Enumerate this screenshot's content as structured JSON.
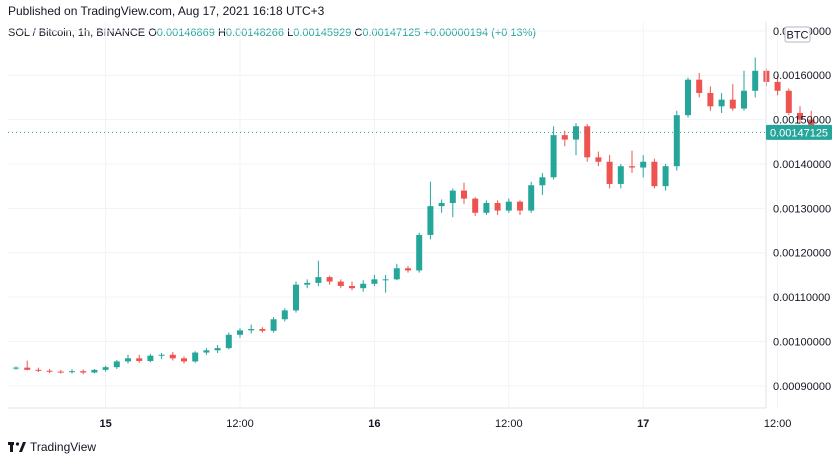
{
  "header": {
    "published": "Published on TradingView.com, Aug 17, 2021 16:18 UTC+3",
    "symbol": "SOL / Bitcoin, 1h, BINANCE",
    "o_label": "O",
    "o_value": "0.00146869",
    "h_label": "H",
    "h_value": "0.00148266",
    "l_label": "L",
    "l_value": "0.00145929",
    "c_label": "C",
    "c_value": "0.00147125",
    "change": "+0.00000194 (+0.13%)"
  },
  "footer": {
    "brand": "TradingView"
  },
  "colors": {
    "up": "#26a69a",
    "down": "#ef5350",
    "grid": "#f0f3fa",
    "text": "#131722"
  },
  "chart_data": {
    "type": "candlestick",
    "currency_badge": "BTC",
    "last_price_label": "0.00147125",
    "last_price": 0.00147125,
    "ylim": [
      0.00085,
      0.00172
    ],
    "y_ticks": [
      {
        "value": 0.0009,
        "label": "0.00090000"
      },
      {
        "value": 0.001,
        "label": "0.00100000"
      },
      {
        "value": 0.0011,
        "label": "0.00110000"
      },
      {
        "value": 0.0012,
        "label": "0.00120000"
      },
      {
        "value": 0.0013,
        "label": "0.00130000"
      },
      {
        "value": 0.0014,
        "label": "0.00140000"
      },
      {
        "value": 0.0015,
        "label": "0.00150000"
      },
      {
        "value": 0.0016,
        "label": "0.00160000"
      },
      {
        "value": 0.0017,
        "label": "0.00170000"
      }
    ],
    "x_ticks": [
      {
        "index": 8,
        "label": "15",
        "bold": true
      },
      {
        "index": 20,
        "label": "12:00",
        "bold": false
      },
      {
        "index": 32,
        "label": "16",
        "bold": true
      },
      {
        "index": 44,
        "label": "12:00",
        "bold": false
      },
      {
        "index": 56,
        "label": "17",
        "bold": true
      },
      {
        "index": 68,
        "label": "12:00",
        "bold": false
      }
    ],
    "candles": [
      {
        "o": 0.00094,
        "h": 0.000944,
        "l": 0.000936,
        "c": 0.000941
      },
      {
        "o": 0.000941,
        "h": 0.000957,
        "l": 0.000935,
        "c": 0.000936
      },
      {
        "o": 0.000936,
        "h": 0.000941,
        "l": 0.000931,
        "c": 0.000934
      },
      {
        "o": 0.000934,
        "h": 0.000938,
        "l": 0.000929,
        "c": 0.000932
      },
      {
        "o": 0.000932,
        "h": 0.000936,
        "l": 0.000928,
        "c": 0.000931
      },
      {
        "o": 0.000931,
        "h": 0.000937,
        "l": 0.000928,
        "c": 0.000933
      },
      {
        "o": 0.000933,
        "h": 0.000937,
        "l": 0.000926,
        "c": 0.00093
      },
      {
        "o": 0.00093,
        "h": 0.000938,
        "l": 0.000928,
        "c": 0.000936
      },
      {
        "o": 0.000936,
        "h": 0.000945,
        "l": 0.000932,
        "c": 0.000942
      },
      {
        "o": 0.000942,
        "h": 0.000958,
        "l": 0.000938,
        "c": 0.000955
      },
      {
        "o": 0.000955,
        "h": 0.00097,
        "l": 0.00095,
        "c": 0.000962
      },
      {
        "o": 0.000962,
        "h": 0.00097,
        "l": 0.000952,
        "c": 0.000956
      },
      {
        "o": 0.000956,
        "h": 0.000972,
        "l": 0.000953,
        "c": 0.000968
      },
      {
        "o": 0.000968,
        "h": 0.000974,
        "l": 0.00096,
        "c": 0.00097
      },
      {
        "o": 0.00097,
        "h": 0.000976,
        "l": 0.000957,
        "c": 0.000962
      },
      {
        "o": 0.000962,
        "h": 0.000966,
        "l": 0.00095,
        "c": 0.000955
      },
      {
        "o": 0.000955,
        "h": 0.000978,
        "l": 0.000952,
        "c": 0.000975
      },
      {
        "o": 0.000975,
        "h": 0.000985,
        "l": 0.00097,
        "c": 0.00098
      },
      {
        "o": 0.00098,
        "h": 0.000992,
        "l": 0.000974,
        "c": 0.000985
      },
      {
        "o": 0.000985,
        "h": 0.00102,
        "l": 0.000982,
        "c": 0.001015
      },
      {
        "o": 0.001015,
        "h": 0.00103,
        "l": 0.001008,
        "c": 0.001025
      },
      {
        "o": 0.001025,
        "h": 0.001038,
        "l": 0.001018,
        "c": 0.001028
      },
      {
        "o": 0.001028,
        "h": 0.001032,
        "l": 0.00102,
        "c": 0.001024
      },
      {
        "o": 0.001024,
        "h": 0.001055,
        "l": 0.00102,
        "c": 0.00105
      },
      {
        "o": 0.00105,
        "h": 0.001075,
        "l": 0.001045,
        "c": 0.00107
      },
      {
        "o": 0.00107,
        "h": 0.001135,
        "l": 0.001065,
        "c": 0.001128
      },
      {
        "o": 0.001128,
        "h": 0.00114,
        "l": 0.00112,
        "c": 0.001132
      },
      {
        "o": 0.001132,
        "h": 0.001182,
        "l": 0.001125,
        "c": 0.001145
      },
      {
        "o": 0.001145,
        "h": 0.001148,
        "l": 0.001128,
        "c": 0.001135
      },
      {
        "o": 0.001135,
        "h": 0.00114,
        "l": 0.00112,
        "c": 0.001125
      },
      {
        "o": 0.001125,
        "h": 0.001135,
        "l": 0.001115,
        "c": 0.00112
      },
      {
        "o": 0.00112,
        "h": 0.001138,
        "l": 0.001112,
        "c": 0.00113
      },
      {
        "o": 0.00113,
        "h": 0.00115,
        "l": 0.001125,
        "c": 0.00114
      },
      {
        "o": 0.00114,
        "h": 0.00115,
        "l": 0.00111,
        "c": 0.00114
      },
      {
        "o": 0.00114,
        "h": 0.001175,
        "l": 0.001138,
        "c": 0.001165
      },
      {
        "o": 0.001165,
        "h": 0.00117,
        "l": 0.001155,
        "c": 0.00116
      },
      {
        "o": 0.00116,
        "h": 0.001245,
        "l": 0.001155,
        "c": 0.00124
      },
      {
        "o": 0.00124,
        "h": 0.00136,
        "l": 0.00123,
        "c": 0.001305
      },
      {
        "o": 0.001305,
        "h": 0.00132,
        "l": 0.00129,
        "c": 0.001312
      },
      {
        "o": 0.001312,
        "h": 0.001345,
        "l": 0.00128,
        "c": 0.00134
      },
      {
        "o": 0.00134,
        "h": 0.001358,
        "l": 0.00131,
        "c": 0.001322
      },
      {
        "o": 0.001322,
        "h": 0.001325,
        "l": 0.001283,
        "c": 0.00129
      },
      {
        "o": 0.00129,
        "h": 0.001318,
        "l": 0.001285,
        "c": 0.001312
      },
      {
        "o": 0.001312,
        "h": 0.001318,
        "l": 0.001285,
        "c": 0.001295
      },
      {
        "o": 0.001295,
        "h": 0.001322,
        "l": 0.00129,
        "c": 0.001315
      },
      {
        "o": 0.001315,
        "h": 0.001318,
        "l": 0.001285,
        "c": 0.001295
      },
      {
        "o": 0.001295,
        "h": 0.00136,
        "l": 0.00129,
        "c": 0.001352
      },
      {
        "o": 0.001352,
        "h": 0.00138,
        "l": 0.00133,
        "c": 0.00137
      },
      {
        "o": 0.00137,
        "h": 0.001485,
        "l": 0.001365,
        "c": 0.001465
      },
      {
        "o": 0.001465,
        "h": 0.001475,
        "l": 0.00144,
        "c": 0.001455
      },
      {
        "o": 0.001455,
        "h": 0.001492,
        "l": 0.00142,
        "c": 0.001485
      },
      {
        "o": 0.001485,
        "h": 0.00149,
        "l": 0.001405,
        "c": 0.001415
      },
      {
        "o": 0.001415,
        "h": 0.001428,
        "l": 0.001395,
        "c": 0.001405
      },
      {
        "o": 0.001405,
        "h": 0.00142,
        "l": 0.001345,
        "c": 0.001355
      },
      {
        "o": 0.001355,
        "h": 0.0014,
        "l": 0.001345,
        "c": 0.001395
      },
      {
        "o": 0.001395,
        "h": 0.00143,
        "l": 0.00138,
        "c": 0.001392
      },
      {
        "o": 0.001392,
        "h": 0.00142,
        "l": 0.00137,
        "c": 0.001405
      },
      {
        "o": 0.001405,
        "h": 0.001412,
        "l": 0.001345,
        "c": 0.00135
      },
      {
        "o": 0.00135,
        "h": 0.0014,
        "l": 0.00134,
        "c": 0.001395
      },
      {
        "o": 0.001395,
        "h": 0.00152,
        "l": 0.001385,
        "c": 0.00151
      },
      {
        "o": 0.00151,
        "h": 0.001595,
        "l": 0.001505,
        "c": 0.00159
      },
      {
        "o": 0.00159,
        "h": 0.001605,
        "l": 0.00155,
        "c": 0.00156
      },
      {
        "o": 0.00156,
        "h": 0.001575,
        "l": 0.00152,
        "c": 0.00153
      },
      {
        "o": 0.00153,
        "h": 0.00156,
        "l": 0.001515,
        "c": 0.001545
      },
      {
        "o": 0.001545,
        "h": 0.00158,
        "l": 0.00152,
        "c": 0.001525
      },
      {
        "o": 0.001525,
        "h": 0.00161,
        "l": 0.00152,
        "c": 0.001565
      },
      {
        "o": 0.001565,
        "h": 0.00164,
        "l": 0.00155,
        "c": 0.00161
      },
      {
        "o": 0.00161,
        "h": 0.001615,
        "l": 0.001575,
        "c": 0.001585
      },
      {
        "o": 0.001585,
        "h": 0.0016,
        "l": 0.001555,
        "c": 0.001565
      },
      {
        "o": 0.001565,
        "h": 0.00157,
        "l": 0.00151,
        "c": 0.001515
      },
      {
        "o": 0.001515,
        "h": 0.00153,
        "l": 0.00149,
        "c": 0.0015
      },
      {
        "o": 0.0015,
        "h": 0.00152,
        "l": 0.001465,
        "c": 0.001469
      },
      {
        "o": 0.001469,
        "h": 0.001483,
        "l": 0.001459,
        "c": 0.00147125
      }
    ]
  }
}
